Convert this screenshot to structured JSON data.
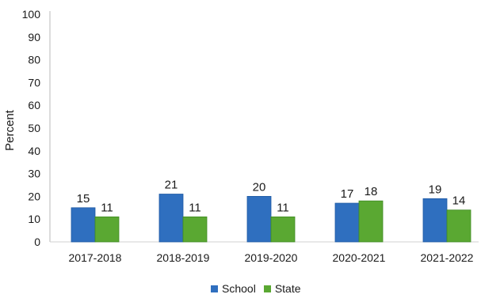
{
  "chart_data": {
    "type": "bar",
    "title": "",
    "xlabel": "",
    "ylabel": "Percent",
    "ylim": [
      0,
      100
    ],
    "yticks": [
      "0",
      "10",
      "20",
      "30",
      "40",
      "50",
      "60",
      "70",
      "80",
      "90",
      "100"
    ],
    "categories": [
      "2017-2018",
      "2018-2019",
      "2019-2020",
      "2020-2021",
      "2021-2022"
    ],
    "series": [
      {
        "name": "School",
        "values": [
          15,
          21,
          20,
          17,
          19
        ],
        "color": "#2f6fbf",
        "labels": [
          "15",
          "21",
          "20",
          "17",
          "19"
        ]
      },
      {
        "name": "State",
        "values": [
          11,
          11,
          11,
          18,
          14
        ],
        "color": "#5aa832",
        "labels": [
          "11",
          "11",
          "11",
          "18",
          "14"
        ]
      }
    ],
    "grid": false,
    "legend_position": "bottom-center"
  }
}
